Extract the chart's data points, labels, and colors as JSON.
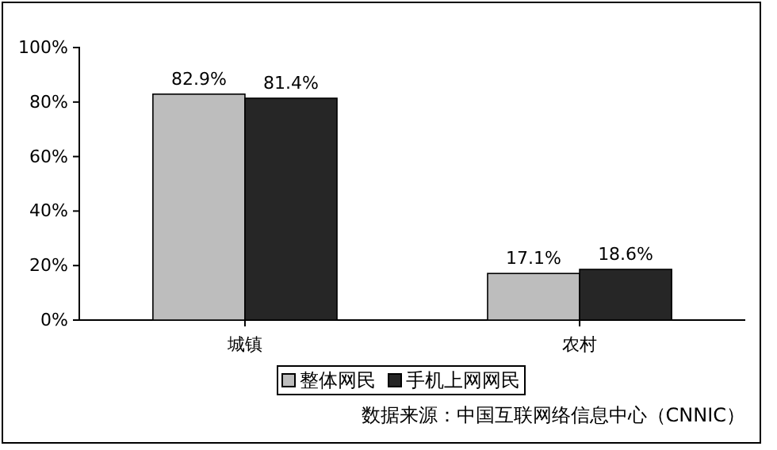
{
  "chart_data": {
    "type": "bar",
    "categories": [
      "城镇",
      "农村"
    ],
    "series": [
      {
        "name": "整体网民",
        "color": "#bdbdbd",
        "values": [
          82.9,
          17.1
        ],
        "value_labels": [
          "82.9%",
          "17.1%"
        ]
      },
      {
        "name": "手机上网网民",
        "color": "#262626",
        "values": [
          81.4,
          18.6
        ],
        "value_labels": [
          "81.4%",
          "18.6%"
        ]
      }
    ],
    "ylim": [
      0,
      100
    ],
    "yticks": [
      {
        "value": 0,
        "label": "0%"
      },
      {
        "value": 20,
        "label": "20%"
      },
      {
        "value": 40,
        "label": "40%"
      },
      {
        "value": 60,
        "label": "60%"
      },
      {
        "value": 80,
        "label": "80%"
      },
      {
        "value": 100,
        "label": "100%"
      }
    ],
    "legend": "bottom",
    "grid": false,
    "annotations": [
      "数据来源：中国互联网络信息中心（CNNIC）"
    ]
  }
}
